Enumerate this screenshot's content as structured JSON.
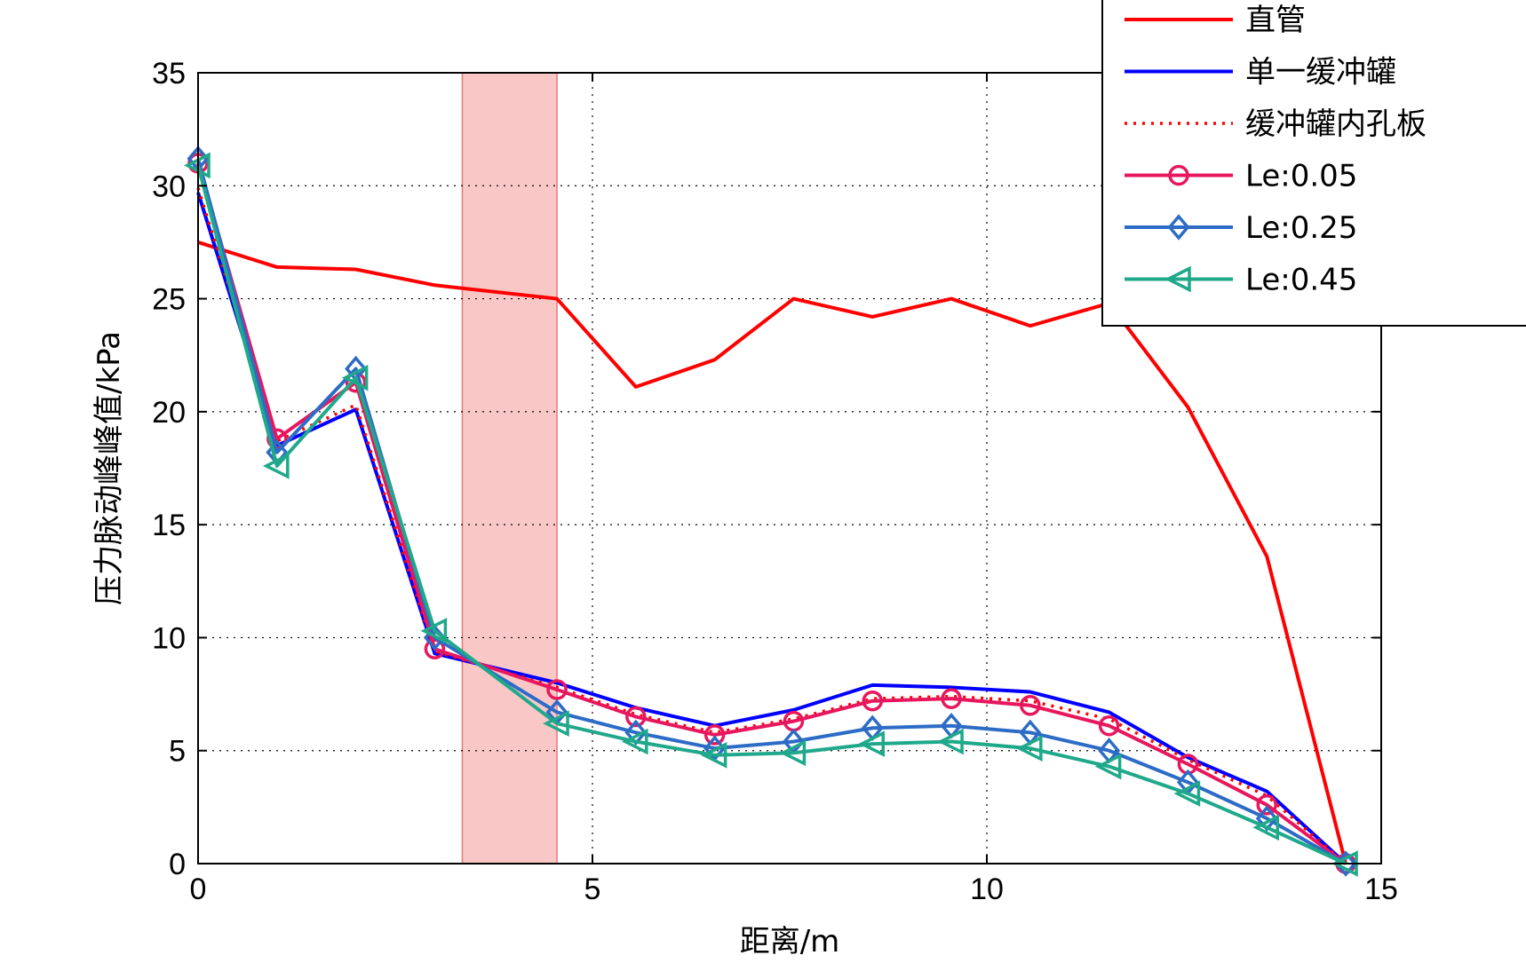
{
  "chart_data": {
    "type": "line",
    "xlabel": "距离/m",
    "ylabel": "压力脉动峰峰值/kPa",
    "xlim": [
      0,
      15
    ],
    "ylim": [
      0,
      35
    ],
    "xticks": [
      0,
      5,
      10,
      15
    ],
    "yticks": [
      0,
      5,
      10,
      15,
      20,
      25,
      30,
      35
    ],
    "grid": true,
    "legend_position": "top-right",
    "highlight_band": {
      "x_start": 3.35,
      "x_end": 4.55,
      "color": "#f8b4b4"
    },
    "x": [
      0,
      1,
      2,
      3,
      4.55,
      5.55,
      6.55,
      7.55,
      8.55,
      9.55,
      10.55,
      11.55,
      12.55,
      13.55,
      14.55
    ],
    "series": [
      {
        "name": "直管",
        "color": "#ff0000",
        "dash": "solid",
        "marker": "none",
        "values": [
          27.5,
          26.4,
          26.3,
          25.6,
          25.0,
          21.1,
          22.3,
          25.0,
          24.2,
          25.0,
          23.8,
          24.8,
          20.2,
          13.6,
          0.0
        ]
      },
      {
        "name": "单一缓冲罐",
        "color": "#0000ff",
        "dash": "solid",
        "marker": "none",
        "values": [
          29.7,
          18.5,
          20.1,
          9.3,
          8.0,
          6.9,
          6.1,
          6.8,
          7.9,
          7.8,
          7.6,
          6.7,
          4.7,
          3.2,
          0.0
        ]
      },
      {
        "name": "缓冲罐内孔板",
        "color": "#ff0000",
        "dash": "dotted",
        "marker": "none",
        "values": [
          29.9,
          18.7,
          20.3,
          9.4,
          7.8,
          6.6,
          5.8,
          6.4,
          7.3,
          7.4,
          7.2,
          6.4,
          4.6,
          3.0,
          0.0
        ]
      },
      {
        "name": "Le:0.05",
        "color": "#e8175d",
        "dash": "solid",
        "marker": "circle",
        "values": [
          31.0,
          18.8,
          21.3,
          9.5,
          7.7,
          6.5,
          5.7,
          6.3,
          7.2,
          7.3,
          7.0,
          6.1,
          4.4,
          2.6,
          0.0
        ]
      },
      {
        "name": "Le:0.25",
        "color": "#2d6cc6",
        "dash": "solid",
        "marker": "diamond",
        "values": [
          31.2,
          18.2,
          21.9,
          10.0,
          6.7,
          5.8,
          5.1,
          5.4,
          6.0,
          6.1,
          5.8,
          5.0,
          3.6,
          2.0,
          0.0
        ]
      },
      {
        "name": "Le:0.45",
        "color": "#1fa98a",
        "dash": "solid",
        "marker": "triangle-left",
        "values": [
          30.9,
          17.6,
          21.5,
          10.3,
          6.2,
          5.4,
          4.8,
          4.9,
          5.3,
          5.4,
          5.1,
          4.3,
          3.1,
          1.6,
          0.0
        ]
      }
    ]
  }
}
